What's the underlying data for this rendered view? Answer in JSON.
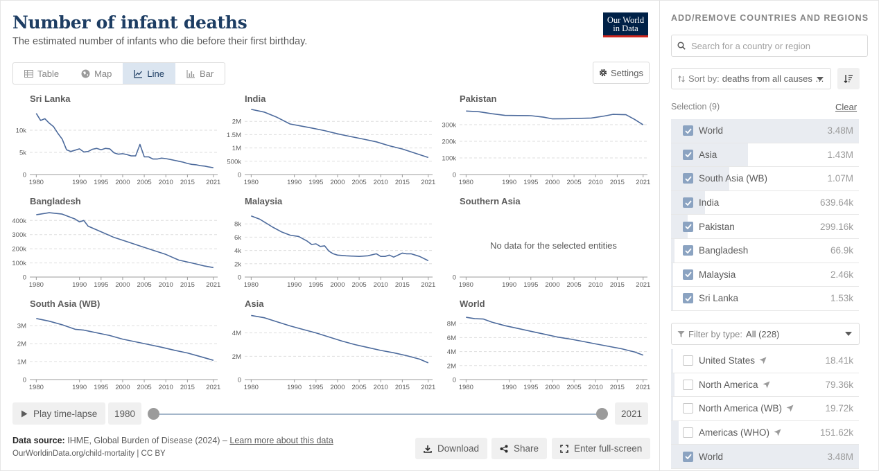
{
  "header": {
    "title": "Number of infant deaths",
    "subtitle": "The estimated number of infants who die before their first birthday.",
    "logo_line1": "Our World",
    "logo_line2": "in Data"
  },
  "tabs": [
    {
      "label": "Table",
      "icon": "table-icon",
      "active": false
    },
    {
      "label": "Map",
      "icon": "globe-icon",
      "active": false
    },
    {
      "label": "Line",
      "icon": "line-chart-icon",
      "active": true
    },
    {
      "label": "Bar",
      "icon": "bar-chart-icon",
      "active": false
    }
  ],
  "settings_label": "Settings",
  "timeline": {
    "play_label": "Play time-lapse",
    "start_year": "1980",
    "end_year": "2021"
  },
  "footer": {
    "source_label": "Data source:",
    "source_text": "IHME, Global Burden of Disease (2024) –",
    "learn_more": "Learn more about this data",
    "url": "OurWorldinData.org/child-mortality | CC BY",
    "download": "Download",
    "share": "Share",
    "fullscreen": "Enter full-screen"
  },
  "sidebar": {
    "title": "ADD/REMOVE COUNTRIES AND REGIONS",
    "search_placeholder": "Search for a country or region",
    "sort_prefix": "Sort by:",
    "sort_value": "deaths from all causes",
    "selection_label": "Selection (9)",
    "clear_label": "Clear",
    "filter_prefix": "Filter by type:",
    "filter_value": "All (228)",
    "selected": [
      {
        "name": "World",
        "value": "3.48M",
        "frac": 1.0
      },
      {
        "name": "Asia",
        "value": "1.43M",
        "frac": 0.41
      },
      {
        "name": "South Asia (WB)",
        "value": "1.07M",
        "frac": 0.31
      },
      {
        "name": "India",
        "value": "639.64k",
        "frac": 0.18
      },
      {
        "name": "Pakistan",
        "value": "299.16k",
        "frac": 0.09
      },
      {
        "name": "Bangladesh",
        "value": "66.9k",
        "frac": 0.02
      },
      {
        "name": "Malaysia",
        "value": "2.46k",
        "frac": 0.0
      },
      {
        "name": "Sri Lanka",
        "value": "1.53k",
        "frac": 0.0
      }
    ],
    "available": [
      {
        "name": "United States",
        "value": "18.41k",
        "frac": 0.005,
        "checked": false,
        "pin": true
      },
      {
        "name": "North America",
        "value": "79.36k",
        "frac": 0.02,
        "checked": false,
        "pin": true
      },
      {
        "name": "North America (WB)",
        "value": "19.72k",
        "frac": 0.006,
        "checked": false,
        "pin": true
      },
      {
        "name": "Americas (WHO)",
        "value": "151.62k",
        "frac": 0.04,
        "checked": false,
        "pin": true
      },
      {
        "name": "World",
        "value": "3.48M",
        "frac": 1.0,
        "checked": true,
        "pin": false
      }
    ]
  },
  "colors": {
    "line": "#4c6a9c",
    "accent": "#1d3d63"
  },
  "chart_data": [
    {
      "type": "line",
      "title": "Sri Lanka",
      "x": [
        1980,
        1981,
        1982,
        1983,
        1984,
        1985,
        1986,
        1987,
        1988,
        1989,
        1990,
        1991,
        1992,
        1993,
        1994,
        1995,
        1996,
        1997,
        1998,
        1999,
        2000,
        2001,
        2002,
        2003,
        2004,
        2005,
        2006,
        2007,
        2008,
        2009,
        2010,
        2011,
        2012,
        2013,
        2014,
        2015,
        2016,
        2017,
        2018,
        2019,
        2020,
        2021
      ],
      "y": [
        13800,
        12200,
        12600,
        11600,
        10800,
        9300,
        8000,
        5600,
        5200,
        5500,
        5800,
        5100,
        5200,
        5700,
        5900,
        5600,
        5900,
        5800,
        4900,
        4600,
        4700,
        4500,
        4200,
        4200,
        6800,
        4000,
        4000,
        3500,
        3500,
        3700,
        3600,
        3400,
        3200,
        3000,
        2800,
        2500,
        2300,
        2200,
        2000,
        1900,
        1700,
        1530
      ],
      "ylim": [
        0,
        15000
      ],
      "yticks": [
        0,
        5000,
        10000
      ],
      "yticklabels": [
        "0",
        "5k",
        "10k"
      ]
    },
    {
      "type": "line",
      "title": "India",
      "x": [
        1980,
        1983,
        1986,
        1989,
        1991,
        1994,
        1997,
        2000,
        2003,
        2006,
        2009,
        2012,
        2015,
        2018,
        2021
      ],
      "y": [
        2450000,
        2350000,
        2150000,
        1900000,
        1840000,
        1750000,
        1650000,
        1530000,
        1430000,
        1330000,
        1230000,
        1080000,
        960000,
        800000,
        640000
      ],
      "ylim": [
        0,
        2500000
      ],
      "yticks": [
        0,
        500000,
        1000000,
        1500000,
        2000000
      ],
      "yticklabels": [
        "0",
        "500k",
        "1M",
        "1.5M",
        "2M"
      ]
    },
    {
      "type": "line",
      "title": "Pakistan",
      "x": [
        1980,
        1983,
        1986,
        1989,
        1992,
        1995,
        1998,
        2000,
        2003,
        2006,
        2009,
        2012,
        2014,
        2016,
        2017,
        2019,
        2021
      ],
      "y": [
        382000,
        378000,
        366000,
        356000,
        355000,
        354000,
        345000,
        335000,
        336000,
        338000,
        340000,
        352000,
        362000,
        361000,
        360000,
        332000,
        299000
      ],
      "ylim": [
        0,
        400000
      ],
      "yticks": [
        0,
        100000,
        200000,
        300000
      ],
      "yticklabels": [
        "0",
        "100k",
        "200k",
        "300k"
      ]
    },
    {
      "type": "line",
      "title": "Bangladesh",
      "x": [
        1980,
        1983,
        1986,
        1989,
        1990,
        1991,
        1992,
        1995,
        1998,
        2001,
        2004,
        2007,
        2010,
        2013,
        2016,
        2019,
        2021
      ],
      "y": [
        440000,
        455000,
        445000,
        410000,
        390000,
        400000,
        360000,
        320000,
        280000,
        250000,
        220000,
        190000,
        160000,
        120000,
        100000,
        78000,
        67000
      ],
      "ylim": [
        0,
        470000
      ],
      "yticks": [
        0,
        100000,
        200000,
        300000,
        400000
      ],
      "yticklabels": [
        "0",
        "100k",
        "200k",
        "300k",
        "400k"
      ]
    },
    {
      "type": "line",
      "title": "Malaysia",
      "x": [
        1980,
        1982,
        1983,
        1985,
        1987,
        1989,
        1991,
        1993,
        1994,
        1995,
        1996,
        1997,
        1998,
        1999,
        2000,
        2002,
        2005,
        2007,
        2009,
        2010,
        2011,
        2012,
        2013,
        2015,
        2016,
        2017,
        2019,
        2021
      ],
      "y": [
        9200,
        8700,
        8300,
        7500,
        6800,
        6300,
        6100,
        5400,
        4900,
        5000,
        4600,
        4700,
        3900,
        3500,
        3300,
        3200,
        3100,
        3200,
        3500,
        3100,
        3100,
        3300,
        3000,
        3600,
        3500,
        3500,
        3100,
        2460
      ],
      "ylim": [
        0,
        10000
      ],
      "yticks": [
        0,
        2000,
        4000,
        6000,
        8000
      ],
      "yticklabels": [
        "0",
        "2k",
        "4k",
        "6k",
        "8k"
      ]
    },
    {
      "type": "line",
      "title": "Southern Asia",
      "x": [],
      "y": [],
      "ylim": [
        0,
        1
      ],
      "yticks": [
        0
      ],
      "yticklabels": [
        "0"
      ],
      "message": "No data for the selected entities"
    },
    {
      "type": "line",
      "title": "South Asia (WB)",
      "x": [
        1980,
        1983,
        1986,
        1989,
        1991,
        1994,
        1997,
        2000,
        2003,
        2006,
        2009,
        2012,
        2015,
        2018,
        2021
      ],
      "y": [
        3400000,
        3250000,
        3050000,
        2800000,
        2750000,
        2600000,
        2450000,
        2250000,
        2100000,
        1950000,
        1800000,
        1630000,
        1480000,
        1280000,
        1070000
      ],
      "ylim": [
        0,
        3700000
      ],
      "yticks": [
        0,
        1000000,
        2000000,
        3000000
      ],
      "yticklabels": [
        "0",
        "1M",
        "2M",
        "3M"
      ]
    },
    {
      "type": "line",
      "title": "Asia",
      "x": [
        1980,
        1983,
        1986,
        1989,
        1992,
        1995,
        1998,
        2001,
        2004,
        2007,
        2010,
        2013,
        2016,
        2019,
        2021
      ],
      "y": [
        5500000,
        5300000,
        4950000,
        4600000,
        4300000,
        4000000,
        3650000,
        3300000,
        3000000,
        2750000,
        2500000,
        2300000,
        2050000,
        1750000,
        1430000
      ],
      "ylim": [
        0,
        5700000
      ],
      "yticks": [
        0,
        2000000,
        4000000
      ],
      "yticklabels": [
        "0",
        "2M",
        "4M"
      ]
    },
    {
      "type": "line",
      "title": "World",
      "x": [
        1980,
        1982,
        1984,
        1986,
        1989,
        1992,
        1995,
        1998,
        2001,
        2004,
        2007,
        2010,
        2013,
        2016,
        2019,
        2021
      ],
      "y": [
        8900000,
        8700000,
        8650000,
        8200000,
        7700000,
        7300000,
        6900000,
        6500000,
        6100000,
        5800000,
        5450000,
        5100000,
        4750000,
        4400000,
        3950000,
        3480000
      ],
      "ylim": [
        0,
        9500000
      ],
      "yticks": [
        0,
        2000000,
        4000000,
        6000000,
        8000000
      ],
      "yticklabels": [
        "0",
        "2M",
        "4M",
        "6M",
        "8M"
      ]
    }
  ],
  "x_ticks": [
    1980,
    1990,
    1995,
    2000,
    2005,
    2010,
    2015,
    2021
  ]
}
